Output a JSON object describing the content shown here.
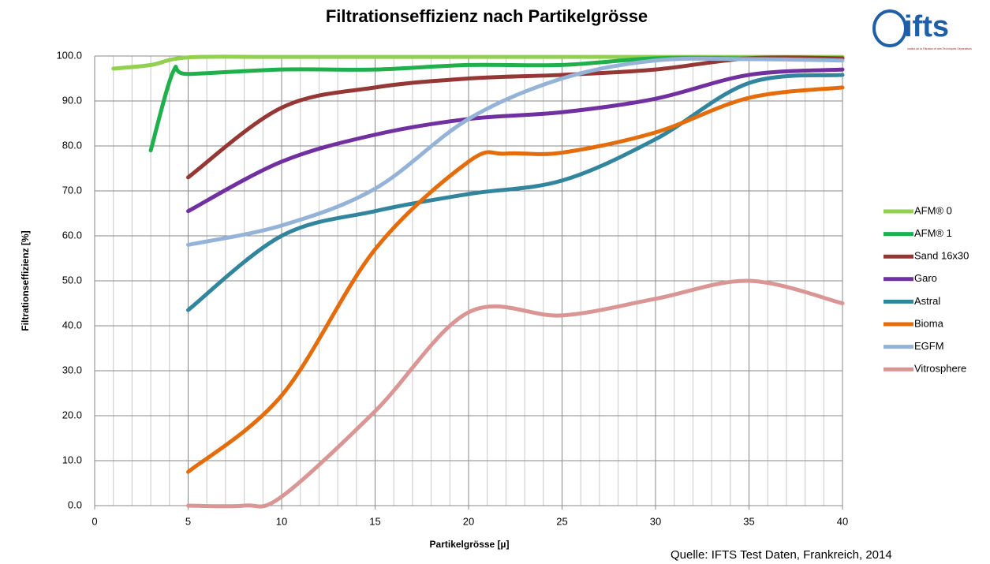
{
  "chart_data": {
    "type": "line",
    "title": "Filtrationseffizienz nach Partikelgrösse",
    "xlabel": "Partikelgrösse [µ]",
    "ylabel": "Filtrationseffizienz [%]",
    "source": "Quelle: IFTS Test Daten, Frankreich, 2014",
    "logo": {
      "name": "ifts",
      "subtitle": "Institut de la Filtration et des Techniques Séparatives"
    },
    "xlim": [
      0,
      40
    ],
    "xticks": [
      0,
      5,
      10,
      15,
      20,
      25,
      30,
      35,
      40
    ],
    "ylim": [
      0,
      100
    ],
    "yticks": [
      {
        "value": 0,
        "label": "0.0"
      },
      {
        "value": 10,
        "label": "10.0"
      },
      {
        "value": 20,
        "label": "20.0"
      },
      {
        "value": 30,
        "label": "30.0"
      },
      {
        "value": 40,
        "label": "40.0"
      },
      {
        "value": 50,
        "label": "50.0"
      },
      {
        "value": 60,
        "label": "60.0"
      },
      {
        "value": 70,
        "label": "70.0"
      },
      {
        "value": 80,
        "label": "80.0"
      },
      {
        "value": 90,
        "label": "90.0"
      },
      {
        "value": 100,
        "label": "100.0"
      }
    ],
    "grid": true,
    "legend": "right",
    "series": [
      {
        "name": "AFM® 0",
        "color": "#92d050",
        "x": [
          1,
          3,
          5,
          10,
          20,
          30,
          40
        ],
        "values": [
          97.2,
          98,
          99.7,
          99.8,
          99.8,
          99.8,
          99.8
        ]
      },
      {
        "name": "AFM® 1",
        "color": "#1fb04b",
        "x": [
          3,
          4.2,
          5,
          10,
          15,
          20,
          25,
          30,
          35,
          40
        ],
        "values": [
          79,
          96.5,
          96,
          97,
          97,
          98,
          98,
          99.5,
          99.5,
          99.5
        ]
      },
      {
        "name": "Sand 16x30",
        "color": "#953735",
        "x": [
          5,
          10,
          15,
          20,
          25,
          30,
          35,
          40
        ],
        "values": [
          73,
          88.5,
          93,
          95,
          95.8,
          97,
          99.5,
          99.5
        ]
      },
      {
        "name": "Garo",
        "color": "#7030a0",
        "x": [
          5,
          10,
          15,
          20,
          25,
          30,
          35,
          40
        ],
        "values": [
          65.5,
          76.5,
          82.5,
          86,
          87.5,
          90.5,
          95.8,
          97
        ]
      },
      {
        "name": "Astral",
        "color": "#31859c",
        "x": [
          5,
          10,
          15,
          20,
          25,
          30,
          35,
          40
        ],
        "values": [
          43.5,
          60,
          65.5,
          69.3,
          72.3,
          81.5,
          94,
          95.8
        ]
      },
      {
        "name": "Bioma",
        "color": "#e46c0a",
        "x": [
          5,
          10,
          15,
          20,
          22,
          25,
          30,
          35,
          40
        ],
        "values": [
          7.5,
          24.5,
          57,
          76.5,
          78.3,
          78.5,
          83,
          90.7,
          93
        ]
      },
      {
        "name": "EGFM",
        "color": "#95b3d7",
        "x": [
          5,
          10,
          15,
          20,
          25,
          30,
          35,
          40
        ],
        "values": [
          58,
          62.3,
          70.5,
          86,
          95,
          99,
          99.3,
          99
        ]
      },
      {
        "name": "Vitrosphere",
        "color": "#d99694",
        "x": [
          5,
          8,
          10,
          15,
          20,
          25,
          30,
          35,
          40
        ],
        "values": [
          0,
          0,
          2,
          21,
          43,
          42.3,
          46,
          50,
          45
        ]
      }
    ]
  }
}
